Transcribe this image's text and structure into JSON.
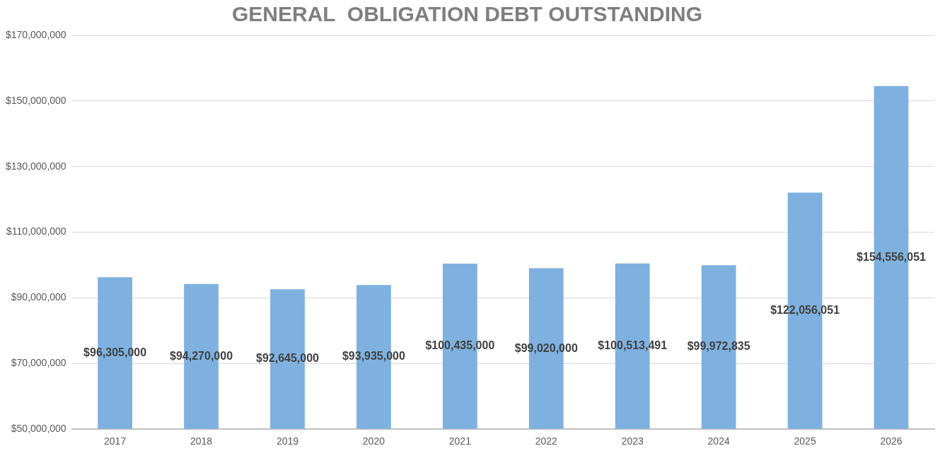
{
  "chart_data": {
    "type": "bar",
    "title": "GENERAL  OBLIGATION DEBT OUTSTANDING",
    "categories": [
      "2017",
      "2018",
      "2019",
      "2020",
      "2021",
      "2022",
      "2023",
      "2024",
      "2025",
      "2026"
    ],
    "values": [
      96305000,
      94270000,
      92645000,
      93935000,
      100435000,
      99020000,
      100513491,
      99972835,
      122056051,
      154556051
    ],
    "value_labels": [
      "$96,305,000",
      "$94,270,000",
      "$92,645,000",
      "$93,935,000",
      "$100,435,000",
      "$99,020,000",
      "$100,513,491",
      "$99,972,835",
      "$122,056,051",
      "$154,556,051"
    ],
    "color": "#7eb1e0",
    "ylim": [
      50000000,
      170000000
    ],
    "yticks": [
      {
        "value": 50000000,
        "label": "$50,000,000"
      },
      {
        "value": 70000000,
        "label": "$70,000,000"
      },
      {
        "value": 90000000,
        "label": "$90,000,000"
      },
      {
        "value": 110000000,
        "label": "$110,000,000"
      },
      {
        "value": 130000000,
        "label": "$130,000,000"
      },
      {
        "value": 150000000,
        "label": "$150,000,000"
      },
      {
        "value": 170000000,
        "label": "$170,000,000"
      }
    ],
    "grid": "y",
    "legend": false
  }
}
